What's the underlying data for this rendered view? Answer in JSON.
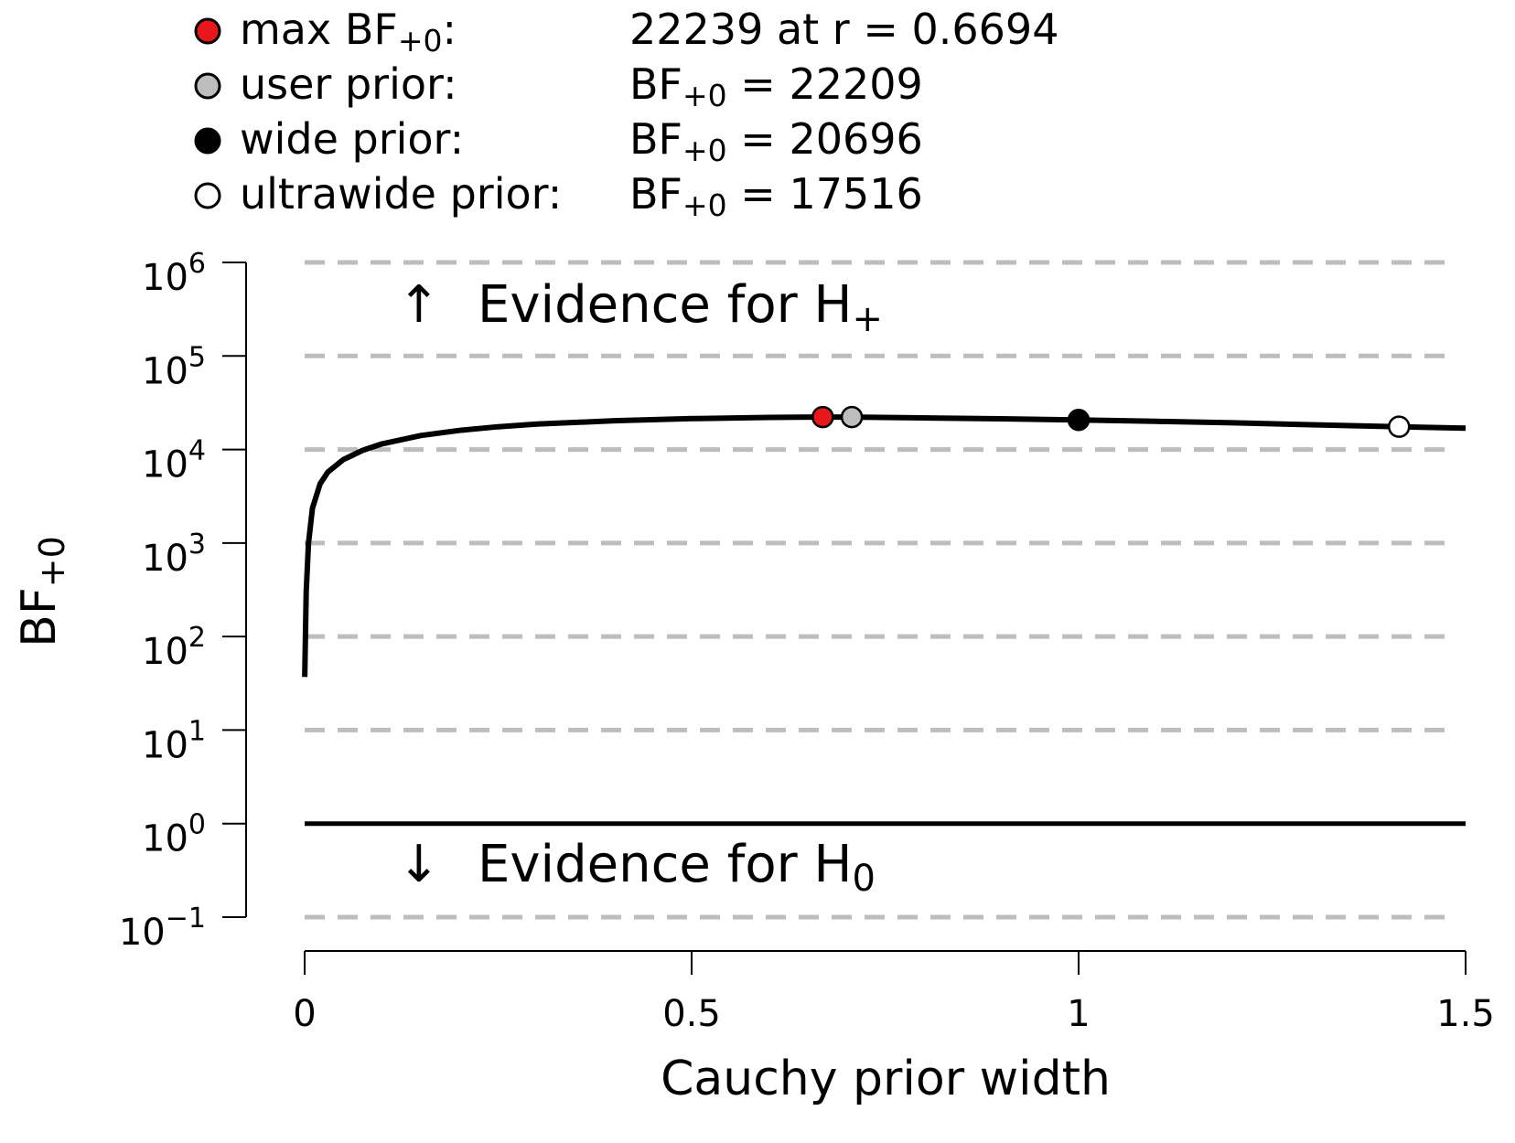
{
  "chart_data": {
    "type": "line",
    "xlabel": "Cauchy prior width",
    "ylabel": {
      "base": "BF",
      "sub": "+0"
    },
    "x_ticks": [
      "0",
      "0.5",
      "1",
      "1.5"
    ],
    "xlim": [
      0,
      1.5
    ],
    "ylim_log10": [
      -1,
      6
    ],
    "y_tick_exponents": [
      "−1",
      "0",
      "1",
      "2",
      "3",
      "4",
      "5",
      "6"
    ],
    "y_tick_base": "10",
    "y_scale": "log10",
    "grid": "horizontal dashed at each decade",
    "reference_line_value": 1,
    "evidence_labels": {
      "upper": {
        "arrow": "↑",
        "text": "Evidence for H",
        "sub": "+"
      },
      "lower": {
        "arrow": "↓",
        "text": "Evidence for H",
        "sub": "0"
      }
    },
    "series": [
      {
        "x": [
          0.0001,
          0.002,
          0.005,
          0.01,
          0.02,
          0.03,
          0.05,
          0.075,
          0.1,
          0.15,
          0.2,
          0.25,
          0.3,
          0.4,
          0.5,
          0.6,
          0.6694,
          0.707,
          0.8,
          0.9,
          1.0,
          1.1,
          1.2,
          1.3,
          1.414,
          1.5
        ],
        "y": [
          37,
          300,
          1000,
          2350,
          4300,
          5750,
          7800,
          9800,
          11500,
          14100,
          16000,
          17500,
          18700,
          20300,
          21400,
          22000,
          22239,
          22209,
          21800,
          21300,
          20696,
          20000,
          19300,
          18400,
          17516,
          16900
        ]
      }
    ],
    "points": [
      {
        "x": 0.6694,
        "y": 22239,
        "fill": "#e8171c"
      },
      {
        "x": 0.707,
        "y": 22209,
        "fill": "#bdbdbd"
      },
      {
        "x": 1.0,
        "y": 20696,
        "fill": "#000000"
      },
      {
        "x": 1.414,
        "y": 17516,
        "fill": "#ffffff"
      }
    ],
    "legend": [
      {
        "label": "max BF",
        "label_sub": "+0",
        "label_suffix": ":",
        "value_prefix": "",
        "value_sub": "",
        "value": "22239 at r = 0.6694",
        "fill": "#e8171c"
      },
      {
        "label": "user prior:",
        "label_sub": "",
        "label_suffix": "",
        "value_prefix": "BF",
        "value_sub": "+0",
        "value": " = 22209",
        "fill": "#bdbdbd"
      },
      {
        "label": "wide prior:",
        "label_sub": "",
        "label_suffix": "",
        "value_prefix": "BF",
        "value_sub": "+0",
        "value": " = 20696",
        "fill": "#000000"
      },
      {
        "label": "ultrawide prior:",
        "label_sub": "",
        "label_suffix": "",
        "value_prefix": "BF",
        "value_sub": "+0",
        "value": " = 17516",
        "fill": "#ffffff"
      }
    ]
  }
}
